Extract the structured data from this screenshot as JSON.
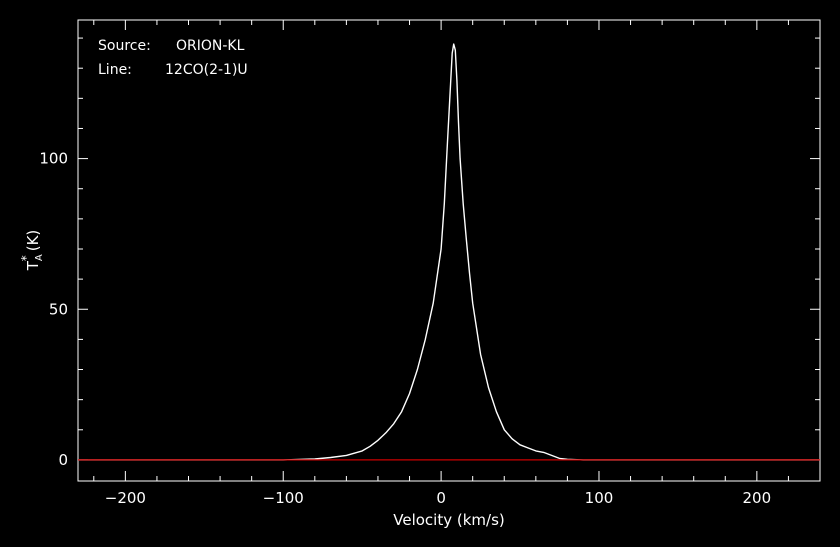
{
  "chart_data": {
    "type": "line",
    "title": "",
    "xlabel": "Velocity (km/s)",
    "ylabel": {
      "base": "T",
      "sub": "A",
      "sup": "*",
      "unit": "(K)"
    },
    "xlim": [
      -230,
      240
    ],
    "ylim": [
      -7,
      146
    ],
    "x_ticks": [
      -200,
      -100,
      0,
      100,
      200
    ],
    "x_tick_labels": [
      "−200",
      "−100",
      "0",
      "100",
      "200"
    ],
    "y_ticks": [
      0,
      50,
      100
    ],
    "y_tick_labels": [
      "0",
      "50",
      "100"
    ],
    "grid": false,
    "legend": "none",
    "annotations": [
      {
        "label": "Source:",
        "value": "ORION-KL"
      },
      {
        "label": "Line:",
        "value": "12CO(2-1)U"
      }
    ],
    "series": [
      {
        "color": "#ffffff",
        "x": [
          -230,
          -200,
          -150,
          -100,
          -80,
          -70,
          -60,
          -50,
          -45,
          -40,
          -35,
          -30,
          -25,
          -20,
          -15,
          -10,
          -5,
          0,
          2,
          4,
          6,
          7,
          8,
          9,
          10,
          11,
          12,
          14,
          16,
          18,
          20,
          25,
          30,
          35,
          40,
          45,
          50,
          55,
          60,
          65,
          70,
          75,
          80,
          90,
          100,
          150,
          200,
          240
        ],
        "y": [
          0,
          0,
          0,
          0,
          0.3,
          0.8,
          1.5,
          3,
          4.5,
          6.5,
          9,
          12,
          16,
          22,
          30,
          40,
          52,
          70,
          85,
          105,
          125,
          135,
          138,
          136,
          126,
          112,
          100,
          85,
          73,
          62,
          52,
          35,
          24,
          16,
          10,
          7,
          5,
          4,
          3,
          2.5,
          1.5,
          0.5,
          0.2,
          0,
          0,
          0,
          0,
          0
        ]
      },
      {
        "color": "#cc0000",
        "x": [
          -230,
          240
        ],
        "y": [
          0,
          0
        ]
      }
    ]
  },
  "colors": {
    "background": "#000000",
    "frame": "#ffffff",
    "spectrum": "#ffffff",
    "baseline": "#cc0000"
  }
}
